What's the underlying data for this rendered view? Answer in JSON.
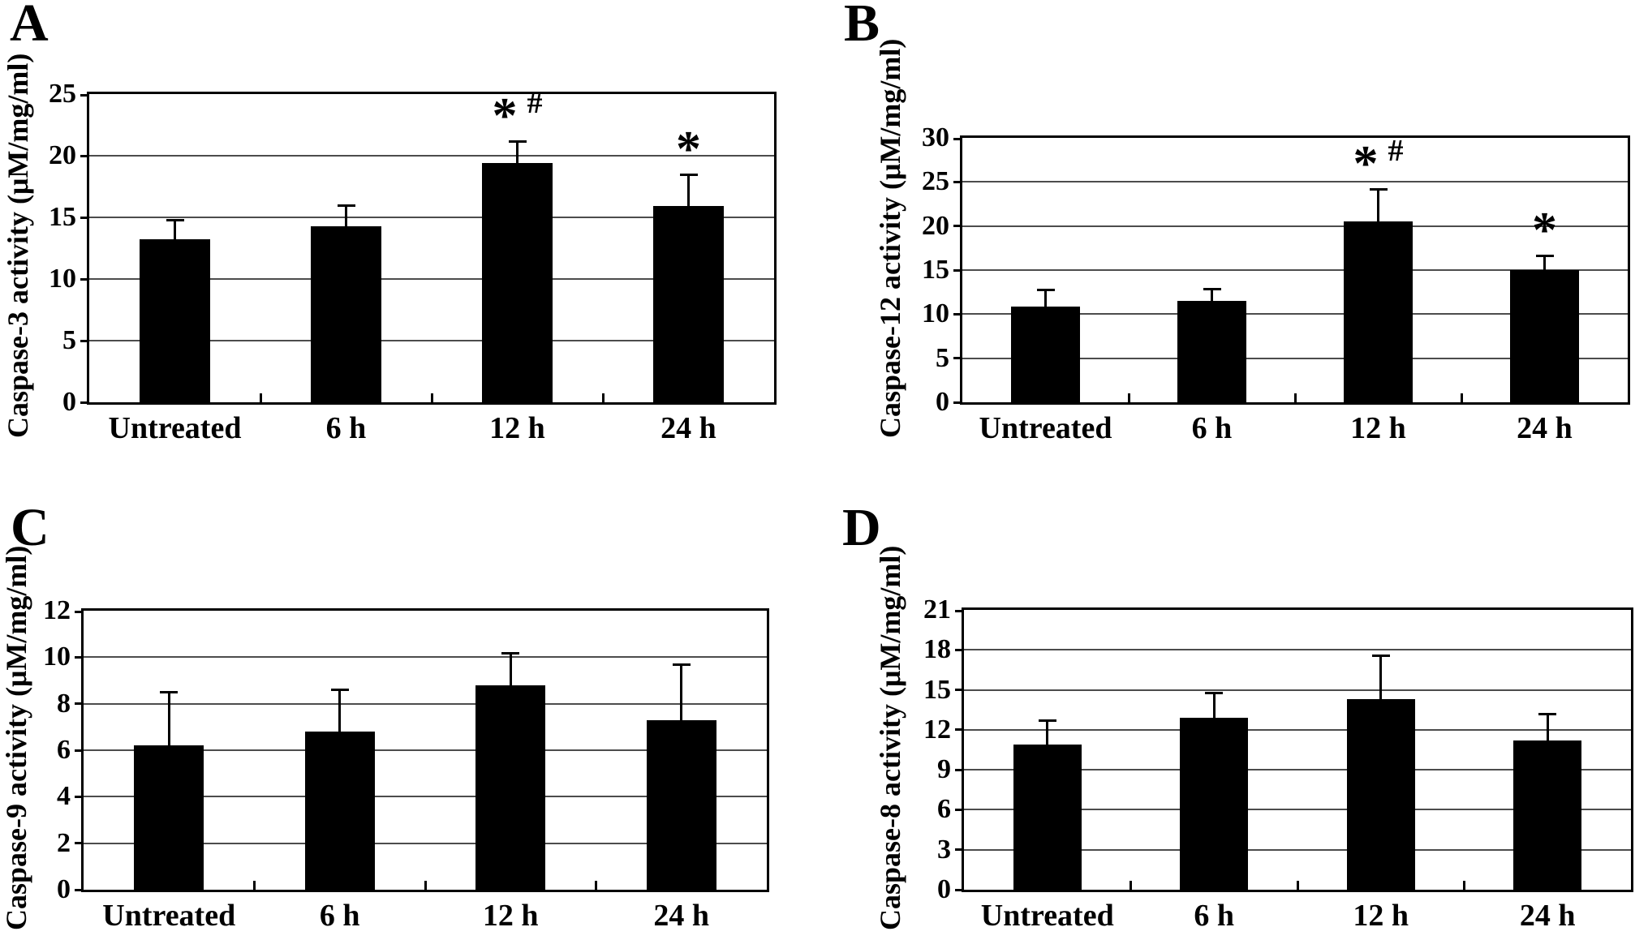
{
  "colors": {
    "bars": "#000000",
    "gridlines": "#4c4c4c",
    "axis_border": "#000000",
    "background": "#ffffff",
    "text": "#000000"
  },
  "chart_data": [
    {
      "panel_label": "A",
      "type": "bar",
      "title": "",
      "xlabel": "",
      "ylabel": "Caspase-3 activity (μM/mg/ml)",
      "categories": [
        "Untreated",
        "6 h",
        "12 h",
        "24 h"
      ],
      "values": [
        13.2,
        14.3,
        19.4,
        15.9
      ],
      "errors_plus": [
        1.6,
        1.7,
        1.8,
        2.6
      ],
      "annotations": [
        "",
        "",
        "* #",
        "*"
      ],
      "ylim": [
        0,
        25
      ],
      "yticks": [
        0,
        5,
        10,
        15,
        20,
        25
      ],
      "grid": true,
      "legend": null,
      "bar_color": "#000000"
    },
    {
      "panel_label": "B",
      "type": "bar",
      "title": "",
      "xlabel": "",
      "ylabel": "Caspase-12 activity (μM/mg/ml)",
      "categories": [
        "Untreated",
        "6 h",
        "12 h",
        "24 h"
      ],
      "values": [
        10.9,
        11.5,
        20.5,
        15.0
      ],
      "errors_plus": [
        1.9,
        1.4,
        3.7,
        1.7
      ],
      "annotations": [
        "",
        "",
        "* #",
        "*"
      ],
      "ylim": [
        0,
        30
      ],
      "yticks": [
        0,
        5,
        10,
        15,
        20,
        25,
        30
      ],
      "grid": true,
      "legend": null,
      "bar_color": "#000000"
    },
    {
      "panel_label": "C",
      "type": "bar",
      "title": "",
      "xlabel": "",
      "ylabel": "Caspase-9 activity (μM/mg/ml)",
      "categories": [
        "Untreated",
        "6 h",
        "12 h",
        "24 h"
      ],
      "values": [
        6.2,
        6.8,
        8.8,
        7.3
      ],
      "errors_plus": [
        2.3,
        1.8,
        1.4,
        2.4
      ],
      "annotations": [
        "",
        "",
        "",
        ""
      ],
      "ylim": [
        0,
        12
      ],
      "yticks": [
        0,
        2,
        4,
        6,
        8,
        10,
        12
      ],
      "grid": true,
      "legend": null,
      "bar_color": "#000000"
    },
    {
      "panel_label": "D",
      "type": "bar",
      "title": "",
      "xlabel": "",
      "ylabel": "Caspase-8 activity (μM/mg/ml)",
      "categories": [
        "Untreated",
        "6 h",
        "12 h",
        "24 h"
      ],
      "values": [
        10.9,
        12.9,
        14.3,
        11.2
      ],
      "errors_plus": [
        1.8,
        1.9,
        3.3,
        2.0
      ],
      "annotations": [
        "",
        "",
        "",
        ""
      ],
      "ylim": [
        0,
        21
      ],
      "yticks": [
        0,
        3,
        6,
        9,
        12,
        15,
        18,
        21
      ],
      "grid": true,
      "legend": null,
      "bar_color": "#000000"
    }
  ]
}
